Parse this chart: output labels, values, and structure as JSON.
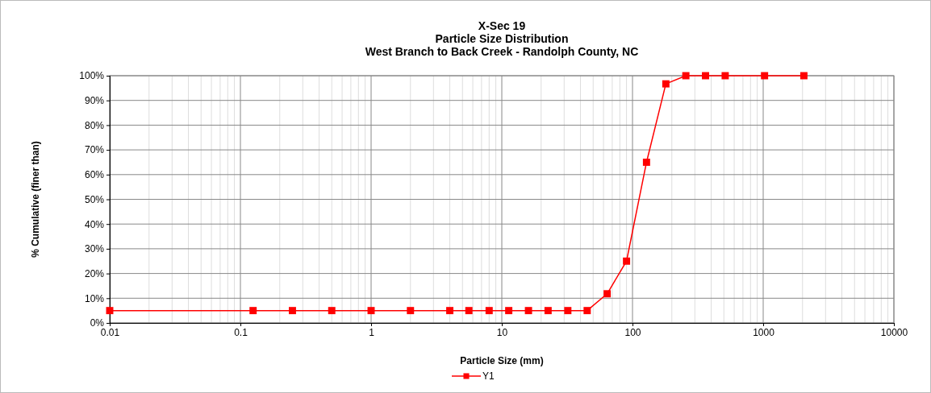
{
  "chart_data": {
    "type": "line",
    "title": "X-Sec 19",
    "subtitle": "Particle Size Distribution\nWest Branch to Back Creek - Randolph County, NC",
    "xlabel": "Particle Size (mm)",
    "ylabel": "% Cumulative (finer than)",
    "log": "x",
    "x": [
      0.01,
      0.125,
      0.25,
      0.5,
      1,
      2,
      4,
      5.6,
      8,
      11.3,
      16,
      22.6,
      32,
      45,
      64,
      90,
      128,
      180,
      256,
      362,
      512,
      1024,
      2048
    ],
    "series": [
      {
        "name": "Y1",
        "color": "#ff0000",
        "values": [
          5,
          5,
          5,
          5,
          5,
          5,
          5,
          5,
          5,
          5,
          5,
          5,
          5,
          5,
          11.8,
          25,
          65,
          96.7,
          100,
          100,
          100,
          100,
          100
        ]
      }
    ],
    "xlim": [
      0.01,
      10000
    ],
    "xticks": [
      0.01,
      0.1,
      1,
      10,
      100,
      1000,
      10000
    ],
    "ylim": [
      0,
      100
    ],
    "yticks": [
      {
        "value": 0,
        "label": "0%"
      },
      {
        "value": 10,
        "label": "10%"
      },
      {
        "value": 20,
        "label": "20%"
      },
      {
        "value": 30,
        "label": "30%"
      },
      {
        "value": 40,
        "label": "40%"
      },
      {
        "value": 50,
        "label": "50%"
      },
      {
        "value": 60,
        "label": "60%"
      },
      {
        "value": 70,
        "label": "70%"
      },
      {
        "value": 80,
        "label": "80%"
      },
      {
        "value": 90,
        "label": "90%"
      },
      {
        "value": 100,
        "label": "100%"
      }
    ],
    "grid": true,
    "legend": "bottom",
    "marker": "square",
    "line_style": "solid"
  }
}
